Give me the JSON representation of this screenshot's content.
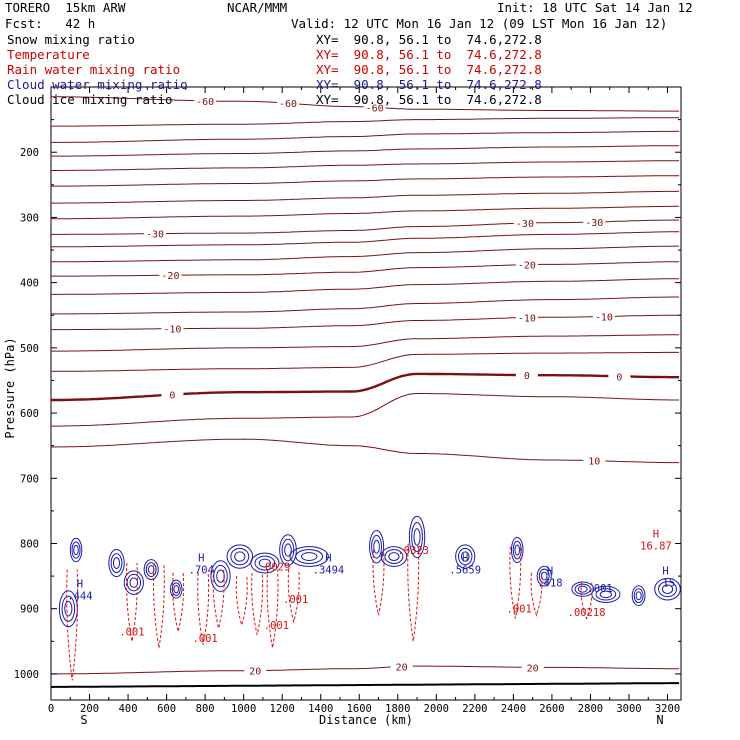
{
  "header": {
    "model": "TORERO  15km ARW",
    "org": "NCAR/MMM",
    "init": "Init: 18 UTC Sat 14 Jan 12",
    "fcst": "Fcst:   42 h",
    "valid": "Valid: 12 UTC Mon 16 Jan 12 (09 LST Mon 16 Jan 12)"
  },
  "fields": [
    {
      "name": "Snow mixing ratio",
      "xy": "XY=  90.8, 56.1 to  74.6,272.8",
      "color": "#000000",
      "xycolor": "#000000"
    },
    {
      "name": "Temperature",
      "xy": "XY=  90.8, 56.1 to  74.6,272.8",
      "color": "#cc0000",
      "xycolor": "#cc0000"
    },
    {
      "name": "Rain water mixing ratio",
      "xy": "XY=  90.8, 56.1 to  74.6,272.8",
      "color": "#cc0000",
      "xycolor": "#cc0000"
    },
    {
      "name": "Cloud water mixing ratio",
      "xy": "XY=  90.8, 56.1 to  74.6,272.8",
      "color": "#1a1a8c",
      "xycolor": "#1a1a8c"
    },
    {
      "name": "Cloud ice mixing ratio",
      "xy": "XY=  90.8, 56.1 to  74.6,272.8",
      "color": "#000000",
      "xycolor": "#000000"
    }
  ],
  "chart_data": {
    "type": "contour",
    "xlabel": "Distance (km)",
    "ylabel": "Pressure (hPa)",
    "xlim": [
      0,
      3270
    ],
    "ylim": [
      1040,
      100
    ],
    "xticks": [
      0,
      200,
      400,
      600,
      800,
      1000,
      1200,
      1400,
      1600,
      1800,
      2000,
      2200,
      2400,
      2600,
      2800,
      3000,
      3200
    ],
    "yticks": [
      200,
      300,
      400,
      500,
      600,
      700,
      800,
      900,
      1000
    ],
    "x_end_labels": {
      "left": "S",
      "right": "N"
    },
    "colors": {
      "temperature": "#7a1010",
      "cloud_water": "#1a1aaa",
      "rain": "#dd1111",
      "surface": "#000000"
    },
    "temperature_isotherms": [
      {
        "label": "-60",
        "pressure": [
          115,
          122,
          130,
          134,
          136,
          137
        ],
        "label_x": [
          800,
          1230,
          1680
        ]
      },
      {
        "label": "",
        "pressure": [
          160,
          157,
          153,
          150,
          148,
          147
        ]
      },
      {
        "label": "",
        "pressure": [
          185,
          180,
          176,
          172,
          170,
          168
        ]
      },
      {
        "label": "",
        "pressure": [
          206,
          202,
          198,
          195,
          192,
          190
        ]
      },
      {
        "label": "",
        "pressure": [
          228,
          224,
          220,
          218,
          215,
          213
        ]
      },
      {
        "label": "",
        "pressure": [
          252,
          248,
          244,
          241,
          238,
          236
        ]
      },
      {
        "label": "",
        "pressure": [
          278,
          274,
          270,
          266,
          263,
          260
        ]
      },
      {
        "label": "",
        "pressure": [
          302,
          298,
          294,
          290,
          286,
          283
        ]
      },
      {
        "label": "-30",
        "pressure": [
          326,
          324,
          320,
          314,
          308,
          304
        ],
        "label_x": [
          540,
          2460,
          2820
        ]
      },
      {
        "label": "",
        "pressure": [
          345,
          342,
          338,
          332,
          326,
          322
        ]
      },
      {
        "label": "",
        "pressure": [
          368,
          365,
          360,
          354,
          348,
          344
        ]
      },
      {
        "label": "-20",
        "pressure": [
          390,
          388,
          384,
          377,
          372,
          368
        ],
        "label_x": [
          620,
          2470
        ]
      },
      {
        "label": "",
        "pressure": [
          418,
          415,
          410,
          403,
          398,
          394
        ]
      },
      {
        "label": "",
        "pressure": [
          448,
          445,
          440,
          432,
          426,
          422
        ]
      },
      {
        "label": "-10",
        "pressure": [
          472,
          470,
          466,
          458,
          453,
          450
        ],
        "label_x": [
          630,
          2470,
          2870
        ]
      },
      {
        "label": "",
        "pressure": [
          505,
          500,
          498,
          486,
          482,
          480
        ]
      },
      {
        "label": "",
        "pressure": [
          536,
          532,
          530,
          510,
          508,
          507
        ]
      },
      {
        "label": "0",
        "pressure": [
          580,
          568,
          567,
          540,
          542,
          545
        ],
        "label_x": [
          630,
          2470,
          2950
        ],
        "emphasis": true
      },
      {
        "label": "",
        "pressure": [
          620,
          608,
          606,
          570,
          575,
          580
        ]
      },
      {
        "label": "10",
        "pressure": [
          652,
          640,
          650,
          662,
          672,
          676
        ],
        "label_x": [
          2820
        ]
      },
      {
        "label": "20",
        "pressure": [
          1000,
          995,
          992,
          988,
          990,
          992
        ],
        "label_x": [
          1060,
          1820,
          2500
        ]
      }
    ],
    "cloud_water_maxima": [
      {
        "label": "H",
        "value": ".444",
        "distance": 150,
        "pressure": 880
      },
      {
        "label": "H",
        "value": ".704",
        "distance": 780,
        "pressure": 840
      },
      {
        "label": "H",
        "value": ".3494",
        "distance": 1440,
        "pressure": 840
      },
      {
        "label": "H",
        "value": ".5659",
        "distance": 2150,
        "pressure": 840
      },
      {
        "label": "H",
        "value": ".418",
        "distance": 2590,
        "pressure": 860
      },
      {
        "label": "",
        "value": ".001",
        "distance": 2850,
        "pressure": 868
      },
      {
        "label": "H",
        "value": ".15",
        "distance": 3190,
        "pressure": 860
      }
    ],
    "rain_maxima": [
      {
        "label": "",
        "value": ".001",
        "distance": 420,
        "pressure": 935
      },
      {
        "label": "",
        "value": ".001",
        "distance": 800,
        "pressure": 945
      },
      {
        "label": "",
        "value": ".001",
        "distance": 1170,
        "pressure": 925
      },
      {
        "label": "",
        "value": ".0029",
        "distance": 1160,
        "pressure": 835
      },
      {
        "label": "",
        "value": ".001",
        "distance": 1270,
        "pressure": 885
      },
      {
        "label": "",
        "value": ".0323",
        "distance": 1880,
        "pressure": 810
      },
      {
        "label": "",
        "value": ".001",
        "distance": 2430,
        "pressure": 900
      },
      {
        "label": "",
        "value": ".00218",
        "distance": 2780,
        "pressure": 905
      },
      {
        "label": "H",
        "value": "16.87",
        "distance": 3140,
        "pressure": 803
      }
    ]
  }
}
